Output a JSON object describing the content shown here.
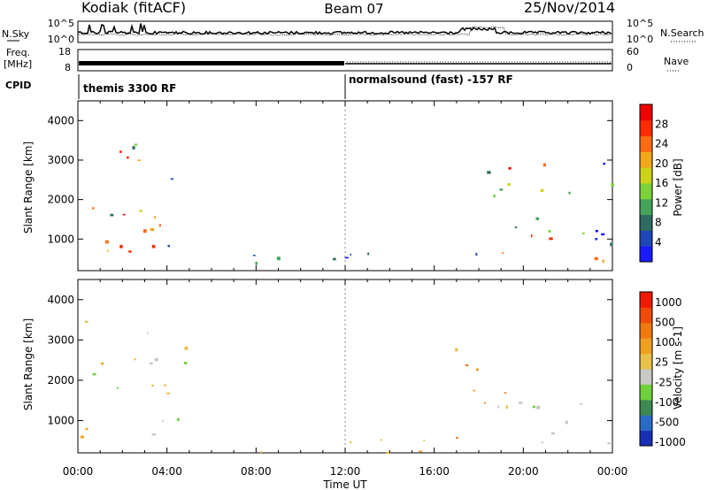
{
  "header": {
    "station": "Kodiak (fitACF)",
    "beam": "Beam 07",
    "date": "25/Nov/2014"
  },
  "strips": {
    "nsky_label": "N.Sky",
    "nsky_ticks": [
      "10^5",
      "10^0"
    ],
    "nsearch_label": "N.Search",
    "nsearch_ticks": [
      "10^5",
      "10^0"
    ],
    "freq_label_1": "Freq.",
    "freq_label_2": "[MHz]",
    "freq_ticks": [
      "18",
      "8"
    ],
    "nave_label": "Nave",
    "nave_ticks": [
      "60",
      "0"
    ],
    "cpid_label": "CPID",
    "cpid_1": "themis 3300 RF",
    "cpid_2": "normalsound (fast) -157 RF"
  },
  "chart_data": [
    {
      "type": "heatmap",
      "name": "power",
      "ylabel": "Slant Range [km]",
      "xlabel": "",
      "yticks": [
        1000,
        2000,
        3000,
        4000
      ],
      "ylim": [
        200,
        4500
      ],
      "xlim": [
        0,
        24
      ],
      "colorbar_label": "Power [dB]",
      "colorbar_ticks": [
        "4",
        "8",
        "12",
        "16",
        "20",
        "24",
        "28"
      ],
      "colorbar_colors": [
        "#1a1aff",
        "#1f47b8",
        "#2f6b62",
        "#45a45c",
        "#7bd23a",
        "#cdd21a",
        "#f2a81a",
        "#ff6a12",
        "#ff2c00",
        "#f00000"
      ],
      "regions": [
        {
          "t0": 0.1,
          "t1": 4.9,
          "r0": 300,
          "r1": 3500,
          "level": "mixed"
        },
        {
          "t0": 0.2,
          "t1": 3.6,
          "r0": 700,
          "r1": 1500,
          "level": "high"
        },
        {
          "t0": 5.0,
          "t1": 17.2,
          "r0": 200,
          "r1": 700,
          "level": "low"
        },
        {
          "t0": 17.2,
          "t1": 24.0,
          "r0": 300,
          "r1": 3000,
          "level": "mixed"
        },
        {
          "t0": 20.0,
          "t1": 24.0,
          "r0": 300,
          "r1": 1200,
          "level": "high"
        }
      ]
    },
    {
      "type": "heatmap",
      "name": "velocity",
      "ylabel": "Slant Range [km]",
      "xlabel": "Time UT",
      "yticks": [
        1000,
        2000,
        3000,
        4000
      ],
      "ylim": [
        200,
        4500
      ],
      "xlim": [
        0,
        24
      ],
      "xticks": [
        "00:00",
        "04:00",
        "08:00",
        "12:00",
        "16:00",
        "20:00",
        "00:00"
      ],
      "colorbar_label": "Velocity [m s-1]",
      "colorbar_ticks": [
        "1000",
        "500",
        "100",
        "25",
        "-25",
        "-100",
        "-500",
        "-1000"
      ],
      "colorbar_colors": [
        "#1a2fb8",
        "#2a6bc8",
        "#3c8a52",
        "#6fd23a",
        "#c8c8c4",
        "#e8c04a",
        "#f0a020",
        "#f07a10",
        "#f04a08",
        "#f01a00"
      ],
      "regions": [
        {
          "t0": 0.1,
          "t1": 4.9,
          "r0": 300,
          "r1": 3500,
          "level": "mixed"
        },
        {
          "t0": 4.0,
          "t1": 5.0,
          "r0": 1000,
          "r1": 2100,
          "level": "green"
        },
        {
          "t0": 5.0,
          "t1": 17.2,
          "r0": 200,
          "r1": 700,
          "level": "orange"
        },
        {
          "t0": 16.8,
          "t1": 19.8,
          "r0": 1000,
          "r1": 3000,
          "level": "orange"
        },
        {
          "t0": 18.0,
          "t1": 24.0,
          "r0": 300,
          "r1": 1600,
          "level": "gray"
        }
      ]
    }
  ]
}
